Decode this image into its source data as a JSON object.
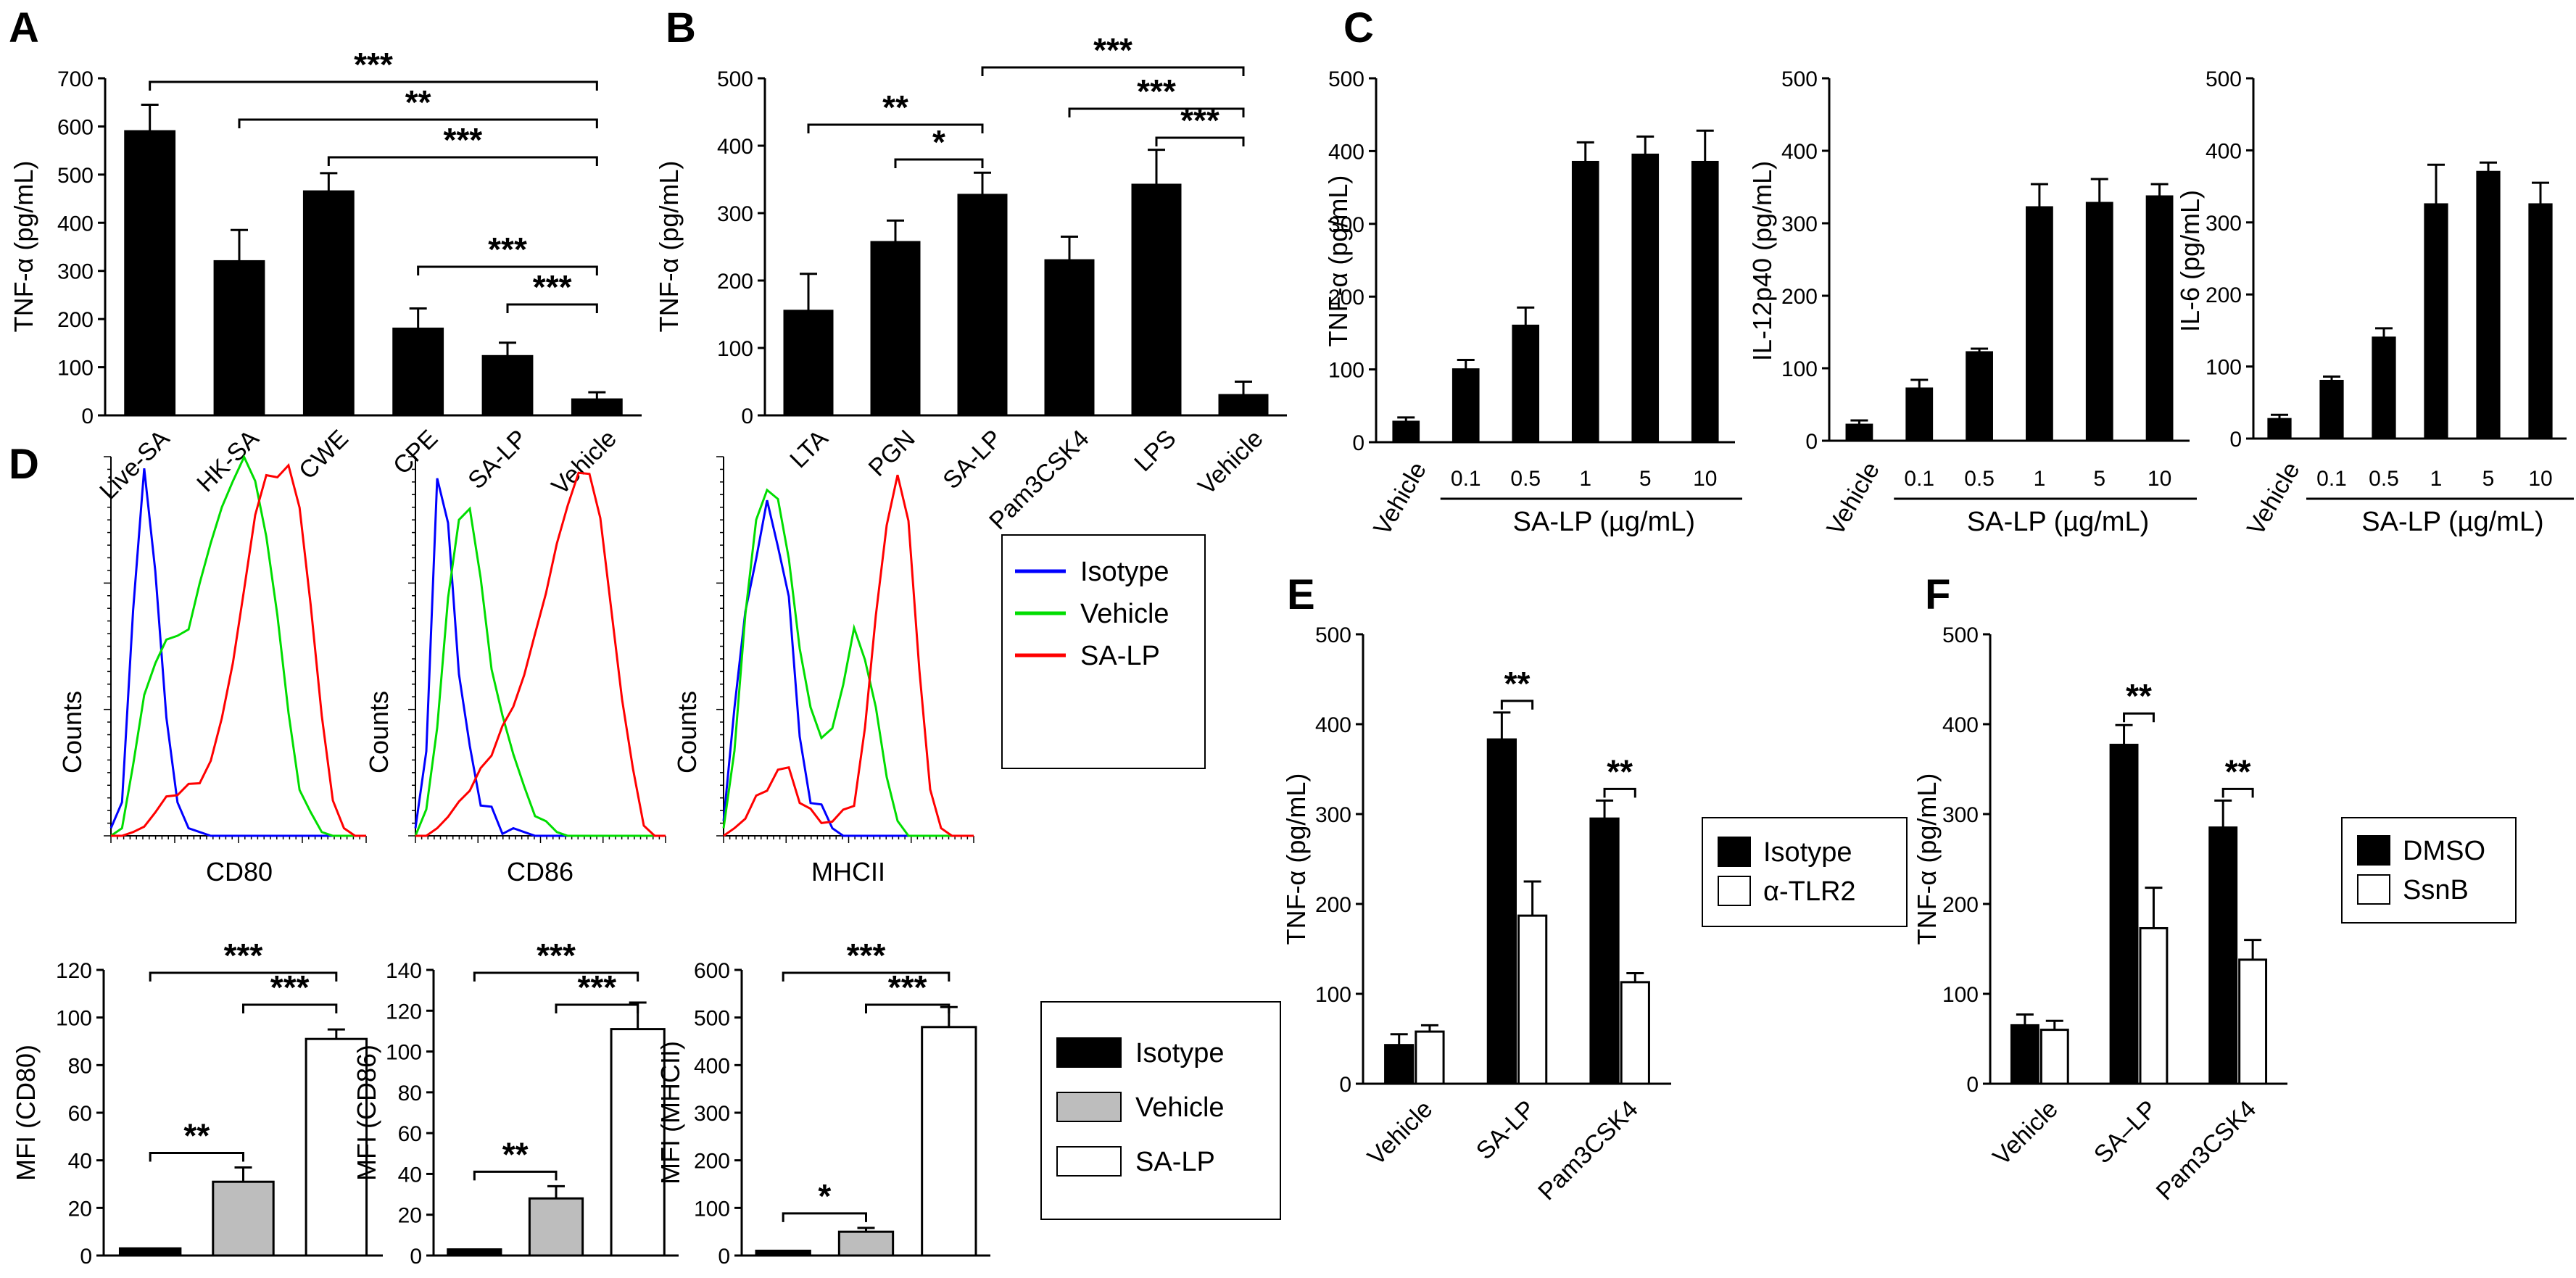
{
  "panels": {
    "A": "A",
    "B": "B",
    "C": "C",
    "D": "D",
    "E": "E",
    "F": "F"
  },
  "colors": {
    "black": "#000000",
    "gray": "#bdbdbd",
    "white": "#ffffff",
    "isotype": "#0000ff",
    "vehicle": "#00dd00",
    "salp": "#ff0000"
  },
  "chart_data": [
    {
      "id": "A",
      "type": "bar",
      "ylabel": "TNF-α (pg/mL)",
      "ylim": [
        0,
        700
      ],
      "yticks": [
        "0",
        "100",
        "200",
        "300",
        "400",
        "500",
        "600",
        "700"
      ],
      "categories": [
        "Live-SA",
        "HK-SA",
        "CWE",
        "CPE",
        "SA-LP",
        "Vehicle"
      ],
      "series": [
        {
          "name": "TNF-α",
          "values": [
            590,
            320,
            465,
            180,
            123,
            33
          ],
          "errors": [
            55,
            65,
            38,
            42,
            28,
            15
          ]
        }
      ],
      "significance": [
        {
          "from": 0,
          "to": 5,
          "label": "***"
        },
        {
          "from": 1,
          "to": 5,
          "label": "**"
        },
        {
          "from": 2,
          "to": 5,
          "label": "***"
        },
        {
          "from": 3,
          "to": 5,
          "label": "***"
        },
        {
          "from": 4,
          "to": 5,
          "label": "***"
        }
      ]
    },
    {
      "id": "B",
      "type": "bar",
      "ylabel": "TNF-α (pg/mL)",
      "ylim": [
        0,
        500
      ],
      "yticks": [
        "0",
        "100",
        "200",
        "300",
        "400",
        "500"
      ],
      "categories": [
        "LTA",
        "PGN",
        "SA-LP",
        "Pam3CSK4",
        "LPS",
        "Vehicle"
      ],
      "series": [
        {
          "name": "TNF-α",
          "values": [
            155,
            257,
            327,
            230,
            342,
            30
          ],
          "errors": [
            55,
            32,
            33,
            35,
            52,
            20
          ]
        }
      ],
      "significance": [
        {
          "from": 0,
          "to": 2,
          "label": "**"
        },
        {
          "from": 1,
          "to": 2,
          "label": "*"
        },
        {
          "from": 2,
          "to": 5,
          "label": "***"
        },
        {
          "from": 3,
          "to": 5,
          "label": "***"
        },
        {
          "from": 4,
          "to": 5,
          "label": "***"
        }
      ]
    },
    {
      "id": "C1",
      "type": "bar",
      "ylabel": "TNF-α (pg/mL)",
      "ylim": [
        0,
        500
      ],
      "yticks": [
        "0",
        "100",
        "200",
        "300",
        "400",
        "500"
      ],
      "categories": [
        "Vehicle",
        "0.1",
        "0.5",
        "1",
        "5",
        "10"
      ],
      "group_label": "SA-LP (µg/mL)",
      "series": [
        {
          "name": "TNF-α",
          "values": [
            28,
            100,
            160,
            385,
            395,
            385
          ],
          "errors": [
            6,
            13,
            25,
            27,
            25,
            43
          ]
        }
      ]
    },
    {
      "id": "C2",
      "type": "bar",
      "ylabel": "IL-12p40 (pg/mL)",
      "ylim": [
        0,
        500
      ],
      "yticks": [
        "0",
        "100",
        "200",
        "300",
        "400",
        "500"
      ],
      "categories": [
        "Vehicle",
        "0.1",
        "0.5",
        "1",
        "5",
        "10"
      ],
      "group_label": "SA-LP (µg/mL)",
      "series": [
        {
          "name": "IL-12p40",
          "values": [
            22,
            72,
            122,
            322,
            328,
            337
          ],
          "errors": [
            6,
            12,
            5,
            32,
            33,
            17
          ]
        }
      ]
    },
    {
      "id": "C3",
      "type": "bar",
      "ylabel": "IL-6 (pg/mL)",
      "ylim": [
        0,
        500
      ],
      "yticks": [
        "0",
        "100",
        "200",
        "300",
        "400",
        "500"
      ],
      "categories": [
        "Vehicle",
        "0.1",
        "0.5",
        "1",
        "5",
        "10"
      ],
      "group_label": "SA-LP (µg/mL)",
      "series": [
        {
          "name": "IL-6",
          "values": [
            27,
            80,
            140,
            325,
            370,
            325
          ],
          "errors": [
            6,
            6,
            13,
            55,
            13,
            30
          ]
        }
      ]
    },
    {
      "id": "D-CD80",
      "type": "line",
      "xlabel": "CD80",
      "ylabel": "Counts",
      "series": [
        {
          "name": "Isotype",
          "values": [
            2,
            8,
            60,
            100,
            70,
            30,
            8,
            2,
            1,
            0,
            0,
            0,
            0,
            0,
            0,
            0,
            0,
            0,
            0,
            0,
            0,
            0,
            0,
            0
          ]
        },
        {
          "name": "Vehicle",
          "values": [
            0,
            2,
            15,
            35,
            45,
            50,
            52,
            58,
            65,
            75,
            85,
            95,
            98,
            90,
            75,
            55,
            35,
            15,
            5,
            1,
            0,
            0,
            0,
            0
          ]
        },
        {
          "name": "SA-LP",
          "values": [
            0,
            0,
            1,
            3,
            5,
            8,
            10,
            12,
            15,
            20,
            30,
            45,
            65,
            82,
            92,
            98,
            96,
            85,
            60,
            30,
            10,
            2,
            0,
            0
          ]
        }
      ]
    },
    {
      "id": "D-CD86",
      "type": "line",
      "xlabel": "CD86",
      "ylabel": "Counts",
      "series": [
        {
          "name": "Isotype",
          "values": [
            2,
            20,
            95,
            85,
            45,
            20,
            10,
            6,
            4,
            2,
            1,
            0,
            0,
            0,
            0,
            0,
            0,
            0,
            0,
            0,
            0,
            0,
            0,
            0
          ]
        },
        {
          "name": "Vehicle",
          "values": [
            0,
            3,
            25,
            60,
            85,
            90,
            70,
            45,
            30,
            20,
            12,
            6,
            3,
            1,
            0,
            0,
            0,
            0,
            0,
            0,
            0,
            0,
            0,
            0
          ]
        },
        {
          "name": "SA-LP",
          "values": [
            0,
            0,
            2,
            5,
            10,
            15,
            20,
            25,
            30,
            35,
            42,
            52,
            65,
            78,
            88,
            95,
            92,
            80,
            60,
            35,
            15,
            3,
            0,
            0
          ]
        }
      ]
    },
    {
      "id": "D-MHCII",
      "type": "line",
      "xlabel": "MHCII",
      "ylabel": "Counts",
      "series": [
        {
          "name": "Isotype",
          "values": [
            3,
            30,
            60,
            75,
            85,
            78,
            60,
            30,
            12,
            5,
            2,
            0,
            0,
            0,
            0,
            0,
            0,
            0,
            0,
            0,
            0,
            0,
            0,
            0
          ]
        },
        {
          "name": "Vehicle",
          "values": [
            2,
            25,
            55,
            80,
            95,
            90,
            70,
            48,
            32,
            25,
            28,
            40,
            55,
            50,
            30,
            12,
            3,
            0,
            0,
            0,
            0,
            0,
            0,
            0
          ]
        },
        {
          "name": "SA-LP",
          "values": [
            0,
            2,
            5,
            10,
            15,
            18,
            15,
            10,
            8,
            5,
            4,
            5,
            10,
            25,
            55,
            85,
            98,
            85,
            45,
            12,
            2,
            0,
            0,
            0
          ]
        }
      ]
    },
    {
      "id": "D-MFI-CD80",
      "type": "bar",
      "ylabel": "MFI (CD80)",
      "ylim": [
        0,
        120
      ],
      "yticks": [
        "0",
        "20",
        "40",
        "60",
        "80",
        "100",
        "120"
      ],
      "categories": [
        "Isotype",
        "Vehicle",
        "SA-LP"
      ],
      "series": [
        {
          "name": "MFI",
          "values": [
            3,
            31,
            91
          ],
          "errors": [
            0,
            6,
            4
          ]
        }
      ],
      "significance": [
        {
          "from": 0,
          "to": 1,
          "label": "**"
        },
        {
          "from": 0,
          "to": 2,
          "label": "***"
        },
        {
          "from": 1,
          "to": 2,
          "label": "***"
        }
      ]
    },
    {
      "id": "D-MFI-CD86",
      "type": "bar",
      "ylabel": "MFI (CD86)",
      "ylim": [
        0,
        140
      ],
      "yticks": [
        "0",
        "20",
        "40",
        "60",
        "80",
        "100",
        "120",
        "140"
      ],
      "categories": [
        "Isotype",
        "Vehicle",
        "SA-LP"
      ],
      "series": [
        {
          "name": "MFI",
          "values": [
            3,
            28,
            111
          ],
          "errors": [
            0,
            6,
            13
          ]
        }
      ],
      "significance": [
        {
          "from": 0,
          "to": 1,
          "label": "**"
        },
        {
          "from": 0,
          "to": 2,
          "label": "***"
        },
        {
          "from": 1,
          "to": 2,
          "label": "***"
        }
      ]
    },
    {
      "id": "D-MFI-MHCII",
      "type": "bar",
      "ylabel": "MFI (MHCII)",
      "ylim": [
        0,
        600
      ],
      "yticks": [
        "0",
        "100",
        "200",
        "300",
        "400",
        "500",
        "600"
      ],
      "categories": [
        "Isotype",
        "Vehicle",
        "SA-LP"
      ],
      "series": [
        {
          "name": "MFI",
          "values": [
            10,
            50,
            480
          ],
          "errors": [
            0,
            8,
            42
          ]
        }
      ],
      "significance": [
        {
          "from": 0,
          "to": 1,
          "label": "*"
        },
        {
          "from": 0,
          "to": 2,
          "label": "***"
        },
        {
          "from": 1,
          "to": 2,
          "label": "***"
        }
      ]
    },
    {
      "id": "E",
      "type": "bar",
      "ylabel": "TNF-α (pg/mL)",
      "ylim": [
        0,
        500
      ],
      "yticks": [
        "0",
        "100",
        "200",
        "300",
        "400",
        "500"
      ],
      "categories": [
        "Vehicle",
        "SA-LP",
        "Pam3CSK4"
      ],
      "series": [
        {
          "name": "Isotype",
          "values": [
            43,
            383,
            295
          ],
          "errors": [
            12,
            30,
            20
          ]
        },
        {
          "name": "α-TLR2",
          "values": [
            58,
            187,
            113
          ],
          "errors": [
            7,
            38,
            10
          ]
        }
      ],
      "significance": [
        {
          "group": 1,
          "label": "**"
        },
        {
          "group": 2,
          "label": "**"
        }
      ]
    },
    {
      "id": "F",
      "type": "bar",
      "ylabel": "TNF-α (pg/mL)",
      "ylim": [
        0,
        500
      ],
      "yticks": [
        "0",
        "100",
        "200",
        "300",
        "400",
        "500"
      ],
      "categories": [
        "Vehicle",
        "SA–LP",
        "Pam3CSK4"
      ],
      "series": [
        {
          "name": "DMSO",
          "values": [
            65,
            377,
            285
          ],
          "errors": [
            12,
            22,
            30
          ]
        },
        {
          "name": "SsnB",
          "values": [
            60,
            173,
            138
          ],
          "errors": [
            10,
            45,
            22
          ]
        }
      ],
      "significance": [
        {
          "group": 1,
          "label": "**"
        },
        {
          "group": 2,
          "label": "**"
        }
      ]
    }
  ],
  "legends": {
    "histogram": [
      "Isotype",
      "Vehicle",
      "SA-LP"
    ],
    "mfi": [
      "Isotype",
      "Vehicle",
      "SA-LP"
    ],
    "E": [
      "Isotype",
      "α-TLR2"
    ],
    "F": [
      "DMSO",
      "SsnB"
    ]
  }
}
